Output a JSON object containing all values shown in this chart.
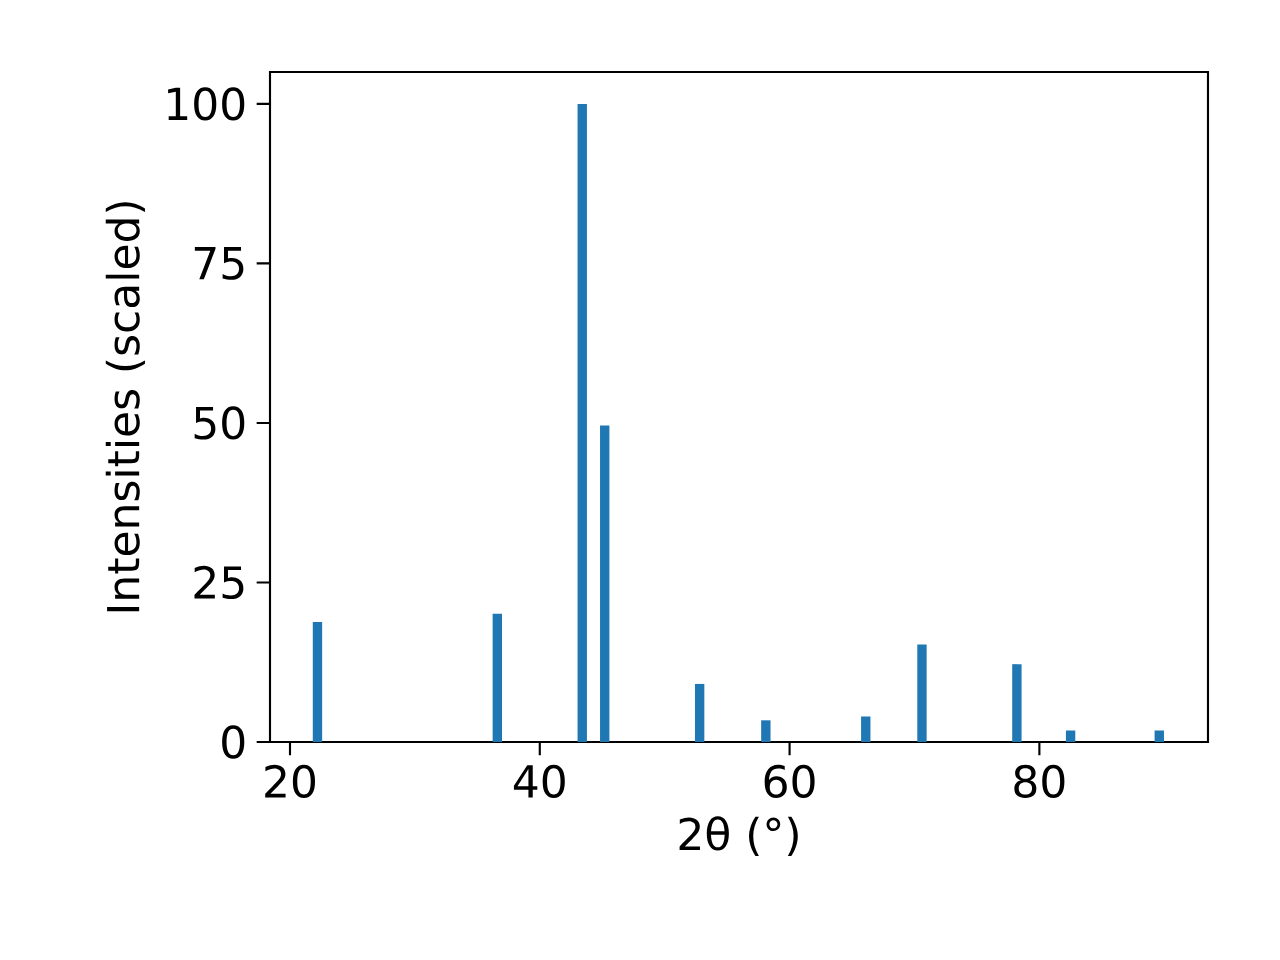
{
  "chart_data": {
    "type": "bar",
    "xlabel": "2θ (°)",
    "ylabel": "Intensities (scaled)",
    "x": [
      22.2,
      36.6,
      43.4,
      45.2,
      52.8,
      58.1,
      66.1,
      70.6,
      78.2,
      82.5,
      89.6
    ],
    "values": [
      18.8,
      20.1,
      100,
      49.6,
      9.1,
      3.4,
      4.0,
      15.3,
      12.2,
      1.8,
      1.8
    ],
    "color": "#1f77b4",
    "xlim": [
      18.4,
      93.5
    ],
    "ylim": [
      0,
      105
    ],
    "xticks": [
      20,
      40,
      60,
      80
    ],
    "yticks": [
      0,
      25,
      50,
      75,
      100
    ]
  }
}
